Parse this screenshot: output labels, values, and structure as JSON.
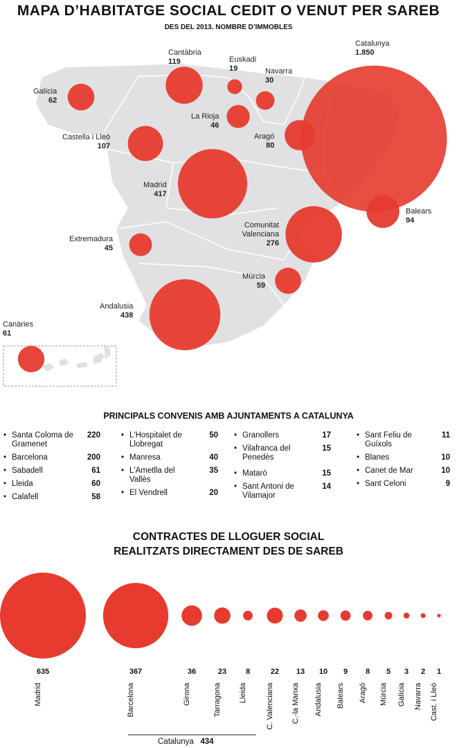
{
  "title": "MAPA D’HABITATGE SOCIAL CEDIT O VENUT PER SAREB",
  "subtitle": "DES DEL 2013. NOMBRE D’IMMOBLES",
  "colors": {
    "bubble": "#e63b2e",
    "land": "#e1e1e3",
    "border": "#ffffff"
  },
  "chart_data": [
    {
      "type": "scatter",
      "title": "Mapa d’habitatge social cedit o venut per Sareb",
      "subtitle": "Des del 2013. Nombre d’immobles",
      "regions": [
        {
          "name": "Galícia",
          "value": 62
        },
        {
          "name": "Cantàbria",
          "value": 119
        },
        {
          "name": "Euskadi",
          "value": 19
        },
        {
          "name": "Navarra",
          "value": 30
        },
        {
          "name": "La Rioja",
          "value": 46
        },
        {
          "name": "Castella i Lleó",
          "value": 107
        },
        {
          "name": "Aragó",
          "value": 80
        },
        {
          "name": "Catalunya",
          "value": 1850,
          "label": "1.850"
        },
        {
          "name": "Madrid",
          "value": 417
        },
        {
          "name": "Balears",
          "value": 94
        },
        {
          "name": "Extremadura",
          "value": 45
        },
        {
          "name": "Comunitat Valenciana",
          "value": 276
        },
        {
          "name": "Múrcia",
          "value": 59
        },
        {
          "name": "Andalusia",
          "value": 438
        },
        {
          "name": "Canàries",
          "value": 61
        }
      ]
    },
    {
      "type": "table",
      "title": "PRINCIPALS CONVENIS AMB AJUNTAMENTS A CATALUNYA",
      "columns": [
        [
          {
            "name": "Santa Coloma de Gramenet",
            "value": 220
          },
          {
            "name": "Barcelona",
            "value": 200
          },
          {
            "name": "Sabadell",
            "value": 61
          },
          {
            "name": "Lleida",
            "value": 60
          },
          {
            "name": "Calafell",
            "value": 58
          }
        ],
        [
          {
            "name": "L'Hospitalet de Llobregat",
            "value": 50
          },
          {
            "name": "Manresa",
            "value": 40
          },
          {
            "name": "L'Ametlla del Vallès",
            "value": 35
          },
          {
            "name": "El Vendrell",
            "value": 20
          }
        ],
        [
          {
            "name": "Granollers",
            "value": 17
          },
          {
            "name": "Vilafranca del Penedès",
            "value": 15
          },
          {
            "name": "Mataró",
            "value": 15
          },
          {
            "name": "Sant Antoni de Vilamajor",
            "value": 14
          }
        ],
        [
          {
            "name": "Sant Feliu de Guíxols",
            "value": 11
          },
          {
            "name": "Blanes",
            "value": 10
          },
          {
            "name": "Canet de Mar",
            "value": 10
          },
          {
            "name": "Sant Celoni",
            "value": 9
          }
        ]
      ]
    },
    {
      "type": "scatter",
      "title": "CONTRACTES DE LLOGUER SOCIAL REALITZATS DIRECTAMENT DES DE SAREB",
      "title_lines": [
        "CONTRACTES DE LLOGUER SOCIAL",
        "REALITZATS DIRECTAMENT DES DE SAREB"
      ],
      "points": [
        {
          "name": "Madrid",
          "value": 635
        },
        {
          "name": "Barcelona",
          "value": 367
        },
        {
          "name": "Girona",
          "value": 36
        },
        {
          "name": "Tarragona",
          "value": 23
        },
        {
          "name": "Lleida",
          "value": 8
        },
        {
          "name": "C. Valenciana",
          "value": 22
        },
        {
          "name": "C.-la Manxa",
          "value": 13
        },
        {
          "name": "Andalusia",
          "value": 10
        },
        {
          "name": "Balears",
          "value": 9
        },
        {
          "name": "Aragó",
          "value": 8
        },
        {
          "name": "Múrcia",
          "value": 5
        },
        {
          "name": "Galícia",
          "value": 3
        },
        {
          "name": "Navarra",
          "value": 2
        },
        {
          "name": "Cast. i Lleó",
          "value": 1
        }
      ],
      "group": {
        "name": "Catalunya",
        "value": 434
      }
    }
  ]
}
